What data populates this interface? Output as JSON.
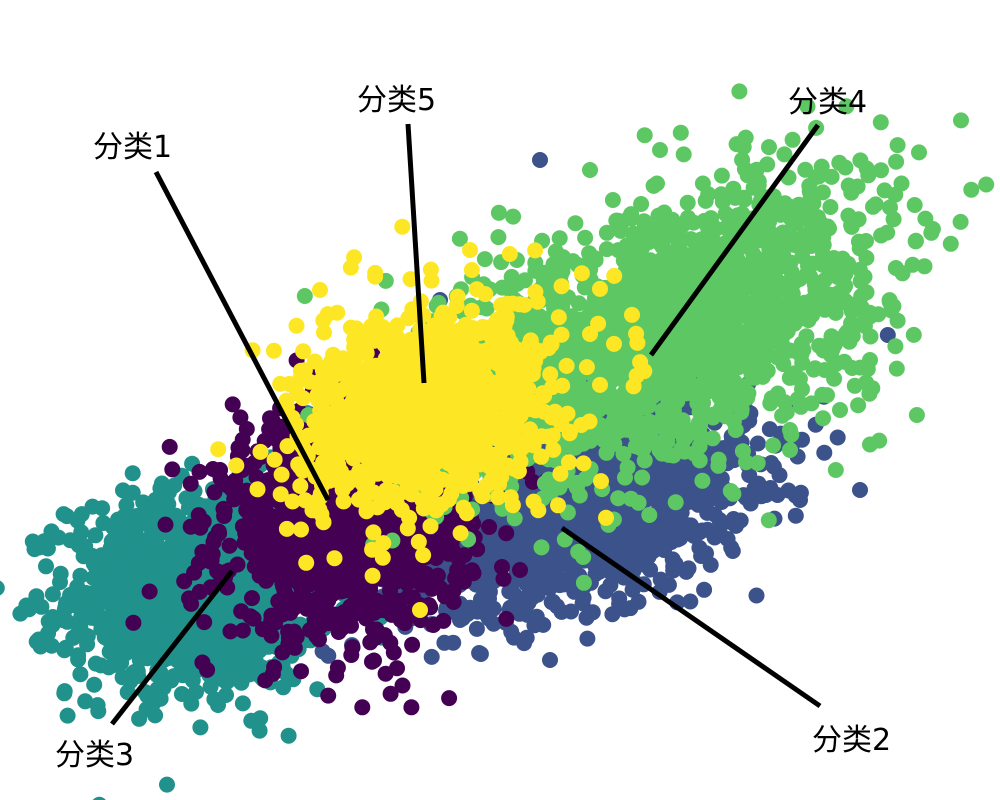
{
  "chart_data": {
    "type": "scatter",
    "title": "",
    "xlabel": "",
    "ylabel": "",
    "axes_visible": false,
    "grid": false,
    "legend": "none",
    "xlim": [
      0,
      100
    ],
    "ylim": [
      0,
      80
    ],
    "series": [
      {
        "key": "c1",
        "color": "#440154",
        "center": [
          35,
          28
        ],
        "spread": [
          6,
          5.5
        ],
        "tilt": 0.1,
        "points": 1400,
        "outliers": [
          [
            31,
            17
          ],
          [
            52,
            23
          ],
          [
            22,
            33
          ],
          [
            40,
            19
          ]
        ]
      },
      {
        "key": "c2",
        "color": "#3B528B",
        "center": [
          58,
          29
        ],
        "spread": [
          8.5,
          4.5
        ],
        "tilt": 0.25,
        "points": 1400,
        "outliers": [
          [
            86,
            31
          ],
          [
            80,
            30
          ],
          [
            55,
            14
          ],
          [
            46,
            18
          ],
          [
            54,
            64
          ],
          [
            38,
            47
          ],
          [
            44,
            50
          ]
        ]
      },
      {
        "key": "c3",
        "color": "#21918C",
        "center": [
          20,
          21
        ],
        "spread": [
          6.5,
          5
        ],
        "tilt": 0.05,
        "points": 1300,
        "outliers": [
          [
            26,
            15
          ],
          [
            22,
            33
          ]
        ]
      },
      {
        "key": "c4",
        "color": "#5DC863",
        "center": [
          66,
          47
        ],
        "spread": [
          11,
          6.5
        ],
        "tilt": 0.3,
        "points": 1800,
        "outliers": [
          [
            66,
            65
          ],
          [
            59,
            63
          ],
          [
            87,
            44
          ],
          [
            84,
            39
          ],
          [
            79,
            37
          ],
          [
            79,
            35
          ]
        ]
      },
      {
        "key": "c5",
        "color": "#FDE725",
        "center": [
          43,
          39
        ],
        "spread": [
          6.5,
          5
        ],
        "tilt": 0.2,
        "points": 1100,
        "outliers": [
          [
            32,
            51
          ],
          [
            42,
            19
          ],
          [
            47,
            55
          ]
        ]
      }
    ],
    "annotations": [
      {
        "series": "c1",
        "text": "分类1"
      },
      {
        "series": "c2",
        "text": "分类2"
      },
      {
        "series": "c3",
        "text": "分类3"
      },
      {
        "series": "c4",
        "text": "分类4"
      },
      {
        "series": "c5",
        "text": "分类5"
      }
    ]
  }
}
